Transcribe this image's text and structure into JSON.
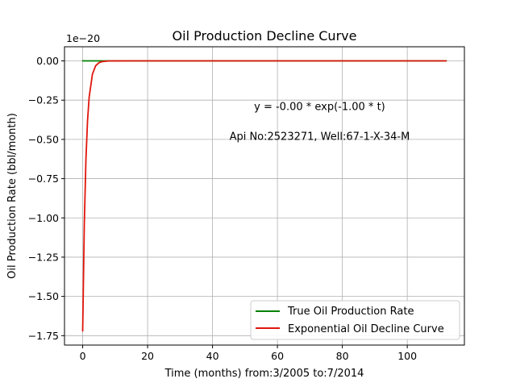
{
  "chart_data": {
    "type": "line",
    "title": "Oil Production Decline Curve",
    "xlabel": "Time (months) from:3/2005 to:7/2014",
    "ylabel": "Oil Production Rate (bbl/month)",
    "y_offset_label": "1e−20",
    "xlim": [
      -5.6,
      117.6
    ],
    "ylim": [
      -1.81,
      0.09
    ],
    "x_ticks": [
      0,
      20,
      40,
      60,
      80,
      100
    ],
    "x_tick_labels": [
      "0",
      "20",
      "40",
      "60",
      "80",
      "100"
    ],
    "y_ticks": [
      0.0,
      -0.25,
      -0.5,
      -0.75,
      -1.0,
      -1.25,
      -1.5,
      -1.75
    ],
    "y_tick_labels": [
      "0.00",
      "−0.25",
      "−0.50",
      "−0.75",
      "−1.00",
      "−1.25",
      "−1.50",
      "−1.75"
    ],
    "grid": true,
    "legend_position": "lower-right",
    "annotations": [
      {
        "text": "y = -0.00 * exp(-1.00 * t)",
        "x": 73,
        "y": -0.29
      },
      {
        "text": "Api No:2523271, Well:67-1-X-34-M",
        "x": 73,
        "y": -0.48
      }
    ],
    "series": [
      {
        "name": "True Oil Production Rate",
        "color": "#008000",
        "x": [
          0,
          112
        ],
        "y": [
          0.0,
          0.0
        ]
      },
      {
        "name": "Exponential Oil Decline Curve",
        "color": "#e0160c",
        "x": [
          0,
          0.5,
          1,
          1.5,
          2,
          3,
          4,
          5,
          6,
          8,
          10,
          15,
          20,
          40,
          60,
          80,
          100,
          112
        ],
        "y": [
          -1.72,
          -1.04,
          -0.63,
          -0.38,
          -0.23,
          -0.085,
          -0.031,
          -0.0116,
          -0.0043,
          -0.0006,
          -0.0001,
          0.0,
          0.0,
          0.0,
          0.0,
          0.0,
          0.0,
          0.0
        ]
      }
    ]
  }
}
